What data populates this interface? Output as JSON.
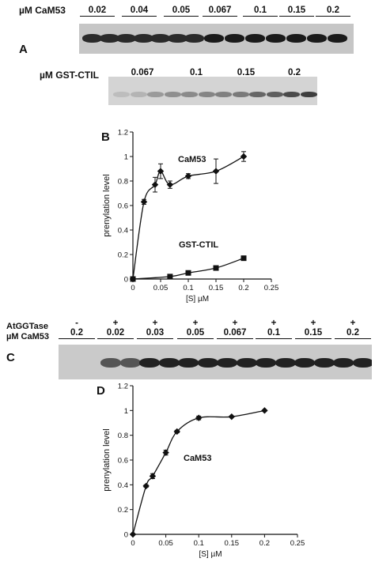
{
  "panel_a": {
    "letter": "A",
    "row_label": "µM CaM53",
    "lanes": [
      "0.02",
      "0.04",
      "0.05",
      "0.067",
      "0.1",
      "0.15",
      "0.2"
    ],
    "ctil_row_label": "µM GST-CTIL",
    "ctil_lanes": [
      "0.067",
      "0.1",
      "0.15",
      "0.2"
    ]
  },
  "panel_b_letter": "B",
  "panel_c": {
    "letter": "C",
    "row1_label": "AtGGTase",
    "row2_label": "µM CaM53",
    "enzyme_signs": [
      "-",
      "+",
      "+",
      "+",
      "+",
      "+",
      "+",
      "+"
    ],
    "lanes": [
      "0.2",
      "0.02",
      "0.03",
      "0.05",
      "0.067",
      "0.1",
      "0.15",
      "0.2"
    ]
  },
  "panel_d_letter": "D",
  "chart_data": [
    {
      "type": "scatter",
      "xlabel": "[S] µM",
      "ylabel": "prenylation level",
      "xlim": [
        0,
        0.25
      ],
      "ylim": [
        0,
        1.2
      ],
      "x_ticks": [
        "0",
        "0.05",
        "0.1",
        "0.15",
        "0.2",
        "0.25"
      ],
      "y_ticks": [
        "0",
        "0.2",
        "0.4",
        "0.6",
        "0.8",
        "1",
        "1.2"
      ],
      "grid": false,
      "series": [
        {
          "name": "CaM53",
          "marker": "diamond",
          "x": [
            0,
            0.02,
            0.04,
            0.05,
            0.067,
            0.1,
            0.15,
            0.2
          ],
          "y": [
            0,
            0.63,
            0.77,
            0.88,
            0.77,
            0.84,
            0.88,
            1.0
          ],
          "err": [
            0,
            0.02,
            0.06,
            0.06,
            0.03,
            0.02,
            0.1,
            0.04
          ]
        },
        {
          "name": "GST-CTIL",
          "marker": "square",
          "x": [
            0,
            0.067,
            0.1,
            0.15,
            0.2
          ],
          "y": [
            0,
            0.02,
            0.05,
            0.09,
            0.17
          ],
          "err": [
            0,
            0,
            0,
            0,
            0
          ]
        }
      ]
    },
    {
      "type": "scatter",
      "xlabel": "[S] µM",
      "ylabel": "prenylation level",
      "xlim": [
        0,
        0.25
      ],
      "ylim": [
        0,
        1.2
      ],
      "x_ticks": [
        "0",
        "0.05",
        "0.1",
        "0.15",
        "0.2",
        "0.25"
      ],
      "y_ticks": [
        "0",
        "0.2",
        "0.4",
        "0.6",
        "0.8",
        "1",
        "1.2"
      ],
      "grid": false,
      "series": [
        {
          "name": "CaM53",
          "marker": "diamond",
          "x": [
            0,
            0.02,
            0.03,
            0.05,
            0.067,
            0.1,
            0.15,
            0.2
          ],
          "y": [
            0,
            0.39,
            0.47,
            0.66,
            0.83,
            0.94,
            0.95,
            1.0
          ],
          "err": [
            0,
            0.01,
            0.02,
            0.02,
            0.01,
            0.015,
            0.005,
            0.005
          ]
        }
      ]
    }
  ]
}
